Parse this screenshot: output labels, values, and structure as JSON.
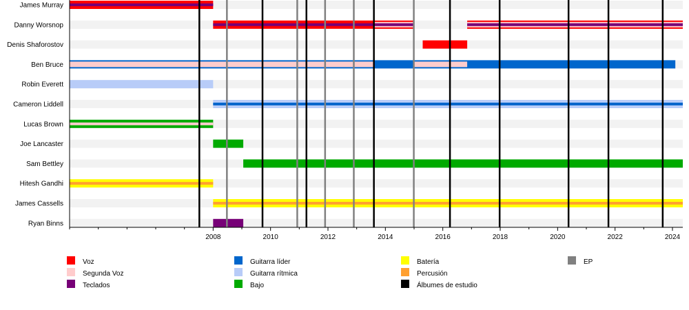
{
  "chart_data": {
    "type": "timeline",
    "title": "",
    "xlim": [
      2003.0,
      2024.36
    ],
    "x_ticks": [
      2008,
      2010,
      2012,
      2014,
      2016,
      2018,
      2020,
      2022,
      2024
    ],
    "grid": false,
    "roles": {
      "voz": {
        "label": "Voz",
        "color": "#ff0000"
      },
      "segunda_voz": {
        "label": "Segunda Voz",
        "color": "#ffcccc"
      },
      "teclados": {
        "label": "Teclados",
        "color": "#770077"
      },
      "guitarra_lider": {
        "label": "Guitarra líder",
        "color": "#0066cc"
      },
      "guitarra_ritmica": {
        "label": "Guitarra rítmica",
        "color": "#b8ccf8"
      },
      "bajo": {
        "label": "Bajo",
        "color": "#00aa00"
      },
      "bateria": {
        "label": "Batería",
        "color": "#ffff00"
      },
      "percusion": {
        "label": "Percusión",
        "color": "#ffa030"
      },
      "albumes": {
        "label": "Álbumes de estudio",
        "color": "#000000"
      },
      "ep": {
        "label": "EP",
        "color": "#808080"
      }
    },
    "legend_order": [
      [
        "voz",
        "segunda_voz",
        "teclados"
      ],
      [
        "guitarra_lider",
        "guitarra_ritmica",
        "bajo"
      ],
      [
        "bateria",
        "percusion",
        "albumes"
      ],
      [
        "ep"
      ]
    ],
    "albums": [
      2007.52,
      2009.72,
      2011.25,
      2013.6,
      2016.25,
      2017.98,
      2020.38,
      2021.77,
      2023.66
    ],
    "eps": [
      2008.48,
      2010.93,
      2011.9,
      2012.9,
      2014.99
    ],
    "members": [
      {
        "name": "James Murray",
        "segments": [
          {
            "role": "voz",
            "start": 2003.0,
            "end": 2008.0,
            "style": "full"
          },
          {
            "role": "teclados",
            "start": 2003.0,
            "end": 2008.0,
            "style": "center"
          }
        ]
      },
      {
        "name": "Danny Worsnop",
        "segments": [
          {
            "role": "voz",
            "start": 2008.0,
            "end": 2013.6,
            "style": "full"
          },
          {
            "role": "teclados",
            "start": 2008.0,
            "end": 2013.6,
            "style": "center"
          },
          {
            "role": "voz",
            "start": 2013.6,
            "end": 2015.0,
            "style": "full"
          },
          {
            "role": "segunda_voz",
            "start": 2013.6,
            "end": 2015.0,
            "style": "inner"
          },
          {
            "role": "teclados",
            "start": 2013.6,
            "end": 2015.0,
            "style": "center"
          },
          {
            "role": "voz",
            "start": 2016.85,
            "end": 2024.36,
            "style": "full"
          },
          {
            "role": "segunda_voz",
            "start": 2016.85,
            "end": 2024.36,
            "style": "inner"
          },
          {
            "role": "teclados",
            "start": 2016.85,
            "end": 2024.36,
            "style": "center"
          }
        ]
      },
      {
        "name": "Denis Shaforostov",
        "segments": [
          {
            "role": "voz",
            "start": 2015.3,
            "end": 2016.85,
            "style": "full"
          }
        ]
      },
      {
        "name": "Ben Bruce",
        "segments": [
          {
            "role": "guitarra_lider",
            "start": 2003.0,
            "end": 2024.1,
            "style": "full"
          },
          {
            "role": "segunda_voz",
            "start": 2003.0,
            "end": 2013.6,
            "style": "inner"
          },
          {
            "role": "segunda_voz",
            "start": 2015.0,
            "end": 2016.85,
            "style": "inner"
          }
        ]
      },
      {
        "name": "Robin Everett",
        "segments": [
          {
            "role": "guitarra_ritmica",
            "start": 2003.0,
            "end": 2008.0,
            "style": "full"
          }
        ]
      },
      {
        "name": "Cameron Liddell",
        "segments": [
          {
            "role": "guitarra_ritmica",
            "start": 2008.0,
            "end": 2024.36,
            "style": "full"
          },
          {
            "role": "guitarra_lider",
            "start": 2008.0,
            "end": 2024.36,
            "style": "center"
          }
        ]
      },
      {
        "name": "Lucas Brown",
        "segments": [
          {
            "role": "bajo",
            "start": 2003.0,
            "end": 2008.0,
            "style": "full"
          },
          {
            "role": "segunda_voz",
            "start": 2003.0,
            "end": 2008.0,
            "style": "center"
          }
        ]
      },
      {
        "name": "Joe Lancaster",
        "segments": [
          {
            "role": "bajo",
            "start": 2008.0,
            "end": 2009.05,
            "style": "full"
          }
        ]
      },
      {
        "name": "Sam Bettley",
        "segments": [
          {
            "role": "bajo",
            "start": 2009.05,
            "end": 2024.36,
            "style": "full"
          }
        ]
      },
      {
        "name": "Hitesh Gandhi",
        "segments": [
          {
            "role": "bateria",
            "start": 2003.0,
            "end": 2008.0,
            "style": "full"
          },
          {
            "role": "percusion",
            "start": 2003.0,
            "end": 2008.0,
            "style": "center"
          }
        ]
      },
      {
        "name": "James Cassells",
        "segments": [
          {
            "role": "bateria",
            "start": 2008.0,
            "end": 2024.36,
            "style": "full"
          },
          {
            "role": "percusion",
            "start": 2008.0,
            "end": 2024.36,
            "style": "center"
          }
        ]
      },
      {
        "name": "Ryan Binns",
        "segments": [
          {
            "role": "teclados",
            "start": 2008.0,
            "end": 2009.05,
            "style": "full"
          }
        ]
      }
    ]
  }
}
